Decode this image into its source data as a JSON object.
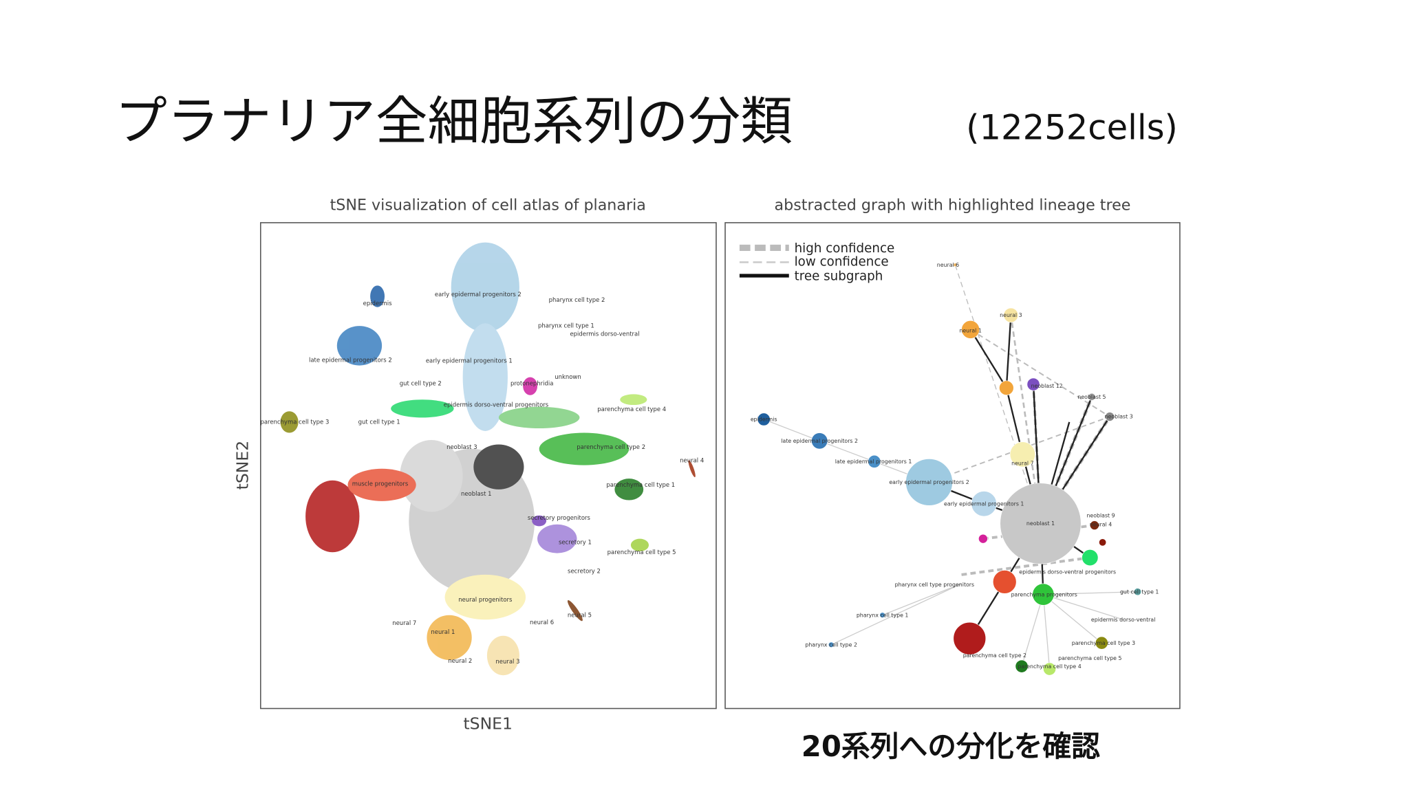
{
  "slide": {
    "title": "プラナリア全細胞系列の分類",
    "subtitle": "(12252cells)",
    "caption": "20系列への分化を確認",
    "figures": [
      {
        "title": "tSNE visualization of cell atlas of planaria",
        "x_label": "tSNE1",
        "y_label": "tSNE2",
        "labels": [
          "early epidermal progenitors 2",
          "pharynx cell type 2",
          "epidermis",
          "pharynx cell type 1",
          "epidermis dorso-ventral",
          "late epidermal progenitors 2",
          "early epidermal progenitors 1",
          "unknown",
          "gut cell type 2",
          "protonephridia",
          "epidermis dorso-ventral progenitors",
          "parenchyma cell type 4",
          "parenchyma cell type 3",
          "gut cell type 1",
          "neoblast 3",
          "parenchyma cell type 2",
          "neural 4",
          "muscle progenitors",
          "parenchyma cell type 1",
          "neoblast 1",
          "secretory progenitors",
          "secretory 1",
          "parenchyma cell type 5",
          "secretory 2",
          "neural progenitors",
          "neural 5",
          "neural 7",
          "neural 6",
          "neural 1",
          "neural 2",
          "neural 3"
        ]
      },
      {
        "title": "abstracted graph with highlighted lineage tree",
        "legend": [
          "high confidence",
          "low confidence",
          "tree subgraph"
        ],
        "labels": [
          "neural 6",
          "neural 3",
          "neural 1",
          "neoblast 12",
          "neoblast 5",
          "neoblast 3",
          "epidermis",
          "late epidermal progenitors 2",
          "late epidermal progenitors 1",
          "neural 7",
          "early epidermal progenitors 2",
          "early epidermal progenitors 1",
          "neoblast 1",
          "neoblast 9",
          "neural 4",
          "pharynx cell type progenitors",
          "gut cell type 1",
          "epidermis dorso-ventral progenitors",
          "parenchyma progenitors",
          "pharynx cell type 1",
          "epidermis dorso-ventral",
          "pharynx cell type 2",
          "parenchyma cell type 3",
          "parenchyma cell type 5",
          "parenchyma cell type 2",
          "parenchyma cell type 4"
        ]
      }
    ]
  }
}
